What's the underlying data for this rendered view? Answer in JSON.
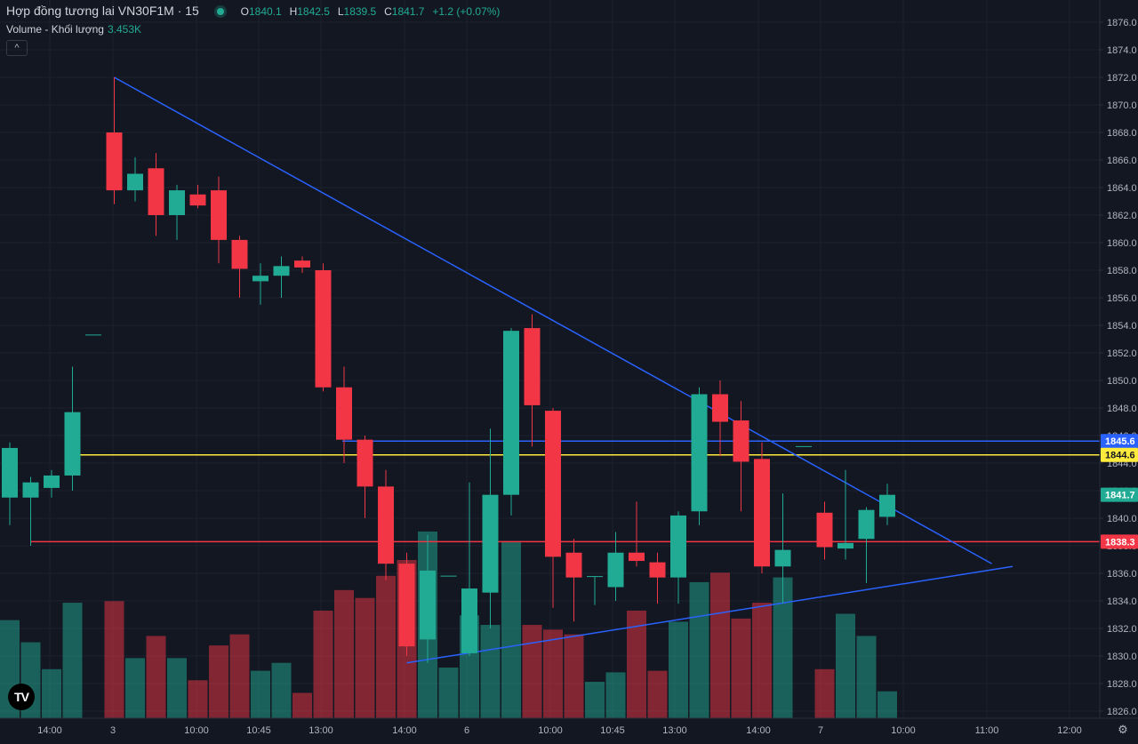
{
  "header": {
    "title": "Hợp đồng tương lai VN30F1M · 15",
    "ohlc": {
      "o_label": "O",
      "o": "1840.1",
      "h_label": "H",
      "h": "1842.5",
      "l_label": "L",
      "l": "1839.5",
      "c_label": "C",
      "c": "1841.7",
      "change": "+1.2 (+0.07%)"
    },
    "volume_label": "Volume - Khối lượng",
    "volume_value": "3.453K",
    "collapse_glyph": "^"
  },
  "colors": {
    "background": "#131722",
    "up": "#22ab94",
    "down": "#f23645",
    "up_volume": "#22ab94",
    "down_volume": "#f23645",
    "trendline": "#2962ff",
    "hline_red": "#f23645",
    "hline_yellow": "#ffeb3b",
    "hline_blue": "#2962ff",
    "grid": "#1e222d",
    "axis_text": "#b2b5be"
  },
  "chart_data": {
    "type": "candlestick",
    "symbol": "VN30F1M",
    "interval": "15",
    "ylim": [
      1825,
      1877
    ],
    "y_ticks": [
      1826,
      1828,
      1830,
      1832,
      1834,
      1836,
      1838,
      1840,
      1842,
      1844,
      1846,
      1848,
      1850,
      1852,
      1854,
      1856,
      1858,
      1860,
      1862,
      1864,
      1866,
      1868,
      1870,
      1872,
      1874,
      1876
    ],
    "x_tick_labels": [
      "14:00",
      "3",
      "10:00",
      "10:45",
      "13:00",
      "14:00",
      "6",
      "10:00",
      "10:45",
      "13:00",
      "14:00",
      "7",
      "10:00",
      "11:00",
      "12:00"
    ],
    "candles": [
      {
        "o": 1841.5,
        "h": 1845.5,
        "l": 1839.5,
        "c": 1845.1
      },
      {
        "o": 1841.5,
        "h": 1843.0,
        "l": 1838.0,
        "c": 1842.6
      },
      {
        "o": 1842.2,
        "h": 1843.5,
        "l": 1841.5,
        "c": 1843.1
      },
      {
        "o": 1843.1,
        "h": 1851.0,
        "l": 1842.0,
        "c": 1847.7
      },
      {
        "o": 1853.3,
        "h": 1853.3,
        "l": 1853.3,
        "c": 1853.3
      },
      {
        "o": 1868.0,
        "h": 1872.0,
        "l": 1862.8,
        "c": 1863.8
      },
      {
        "o": 1863.8,
        "h": 1866.2,
        "l": 1863.0,
        "c": 1865.0
      },
      {
        "o": 1865.4,
        "h": 1866.5,
        "l": 1860.5,
        "c": 1862.0
      },
      {
        "o": 1862.0,
        "h": 1864.2,
        "l": 1860.2,
        "c": 1863.8
      },
      {
        "o": 1863.5,
        "h": 1864.2,
        "l": 1862.5,
        "c": 1862.7
      },
      {
        "o": 1863.8,
        "h": 1864.8,
        "l": 1858.5,
        "c": 1860.2
      },
      {
        "o": 1860.2,
        "h": 1860.5,
        "l": 1856.0,
        "c": 1858.1
      },
      {
        "o": 1857.2,
        "h": 1858.5,
        "l": 1855.5,
        "c": 1857.6
      },
      {
        "o": 1857.6,
        "h": 1859.0,
        "l": 1856.0,
        "c": 1858.3
      },
      {
        "o": 1858.7,
        "h": 1859.0,
        "l": 1857.8,
        "c": 1858.2
      },
      {
        "o": 1858.0,
        "h": 1858.5,
        "l": 1849.2,
        "c": 1849.5
      },
      {
        "o": 1849.5,
        "h": 1851.0,
        "l": 1844.0,
        "c": 1845.7
      },
      {
        "o": 1845.7,
        "h": 1846.0,
        "l": 1840.0,
        "c": 1842.3
      },
      {
        "o": 1842.3,
        "h": 1843.5,
        "l": 1835.5,
        "c": 1836.7
      },
      {
        "o": 1836.7,
        "h": 1837.5,
        "l": 1830.0,
        "c": 1830.7
      },
      {
        "o": 1831.2,
        "h": 1838.8,
        "l": 1829.5,
        "c": 1836.2
      },
      {
        "o": 1835.8,
        "h": 1835.8,
        "l": 1835.8,
        "c": 1835.8
      },
      {
        "o": 1830.2,
        "h": 1842.6,
        "l": 1830.0,
        "c": 1834.9
      },
      {
        "o": 1834.6,
        "h": 1846.5,
        "l": 1832.0,
        "c": 1841.7
      },
      {
        "o": 1841.7,
        "h": 1853.8,
        "l": 1840.2,
        "c": 1853.6
      },
      {
        "o": 1853.8,
        "h": 1854.8,
        "l": 1845.2,
        "c": 1848.2
      },
      {
        "o": 1847.8,
        "h": 1848.0,
        "l": 1833.5,
        "c": 1837.2
      },
      {
        "o": 1837.5,
        "h": 1838.5,
        "l": 1832.5,
        "c": 1835.7
      },
      {
        "o": 1835.8,
        "h": 1835.8,
        "l": 1833.7,
        "c": 1835.8
      },
      {
        "o": 1835.0,
        "h": 1839.0,
        "l": 1834.0,
        "c": 1837.5
      },
      {
        "o": 1837.5,
        "h": 1841.2,
        "l": 1836.5,
        "c": 1836.9
      },
      {
        "o": 1836.8,
        "h": 1837.5,
        "l": 1833.8,
        "c": 1835.7
      },
      {
        "o": 1835.7,
        "h": 1840.5,
        "l": 1833.8,
        "c": 1840.2
      },
      {
        "o": 1840.5,
        "h": 1849.5,
        "l": 1839.5,
        "c": 1849.0
      },
      {
        "o": 1849.0,
        "h": 1850.0,
        "l": 1844.5,
        "c": 1847.0
      },
      {
        "o": 1847.1,
        "h": 1848.5,
        "l": 1840.5,
        "c": 1844.1
      },
      {
        "o": 1844.3,
        "h": 1845.5,
        "l": 1836.0,
        "c": 1836.5
      },
      {
        "o": 1836.5,
        "h": 1841.8,
        "l": 1833.8,
        "c": 1837.7
      },
      {
        "o": 1845.2,
        "h": 1845.2,
        "l": 1845.2,
        "c": 1845.2
      },
      {
        "o": 1840.4,
        "h": 1841.2,
        "l": 1837.0,
        "c": 1837.9
      },
      {
        "o": 1837.8,
        "h": 1843.5,
        "l": 1837.0,
        "c": 1838.2
      },
      {
        "o": 1838.5,
        "h": 1840.8,
        "l": 1835.3,
        "c": 1840.6
      },
      {
        "o": 1840.1,
        "h": 1842.5,
        "l": 1839.5,
        "c": 1841.7
      }
    ],
    "volume_heights_relative": [
      0.62,
      0.48,
      0.31,
      0.73,
      0.0,
      0.74,
      0.38,
      0.52,
      0.38,
      0.24,
      0.46,
      0.53,
      0.3,
      0.35,
      0.16,
      0.68,
      0.81,
      0.76,
      0.9,
      1.0,
      1.18,
      0.32,
      0.65,
      0.59,
      1.12,
      0.59,
      0.56,
      0.53,
      0.23,
      0.29,
      0.68,
      0.3,
      0.61,
      0.86,
      0.92,
      0.63,
      0.73,
      0.89,
      0.0,
      0.31,
      0.66,
      0.52,
      0.17
    ],
    "horizontal_lines": [
      {
        "price": 1845.6,
        "color": "blue"
      },
      {
        "price": 1844.6,
        "color": "yellow"
      },
      {
        "price": 1838.3,
        "color": "red"
      }
    ],
    "price_labels": [
      {
        "text": "1845.6",
        "color": "blue"
      },
      {
        "text": "1844.6",
        "color": "yellow"
      },
      {
        "text": "1841.7",
        "color": "green"
      },
      {
        "text": "1838.3",
        "color": "red"
      }
    ],
    "trendlines": [
      {
        "from": [
          5,
          1872.0
        ],
        "to": [
          47,
          1836.7
        ]
      },
      {
        "from": [
          19,
          1829.5
        ],
        "to": [
          48,
          1836.5
        ]
      }
    ]
  },
  "footer": {
    "logo": "TV",
    "settings_icon": "gear-icon"
  }
}
